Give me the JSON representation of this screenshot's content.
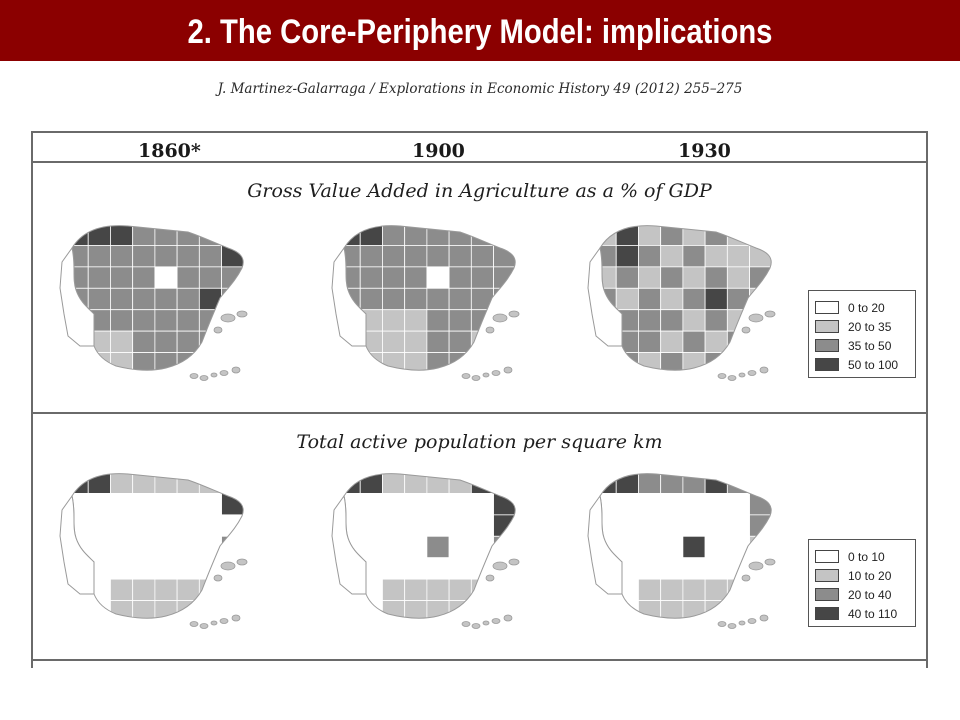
{
  "slide": {
    "title": "2. The Core-Periphery Model: implications",
    "citation": "J. Martinez-Galarraga / Explorations in Economic History 49 (2012) 255–275"
  },
  "figure": {
    "years": [
      "1860*",
      "1900",
      "1930"
    ],
    "panels": [
      {
        "title": "Gross Value Added in Agriculture as a % of GDP",
        "legend": [
          {
            "label": "0 to 20",
            "color": "#ffffff"
          },
          {
            "label": "20 to 35",
            "color": "#c4c4c4"
          },
          {
            "label": "35 to 50",
            "color": "#8c8c8c"
          },
          {
            "label": "50 to 100",
            "color": "#464646"
          }
        ]
      },
      {
        "title": "Total active population per square km",
        "legend": [
          {
            "label": "0 to 10",
            "color": "#ffffff"
          },
          {
            "label": "10 to 20",
            "color": "#c4c4c4"
          },
          {
            "label": "20 to 40",
            "color": "#8c8c8c"
          },
          {
            "label": "40 to 110",
            "color": "#464646"
          }
        ]
      }
    ]
  }
}
